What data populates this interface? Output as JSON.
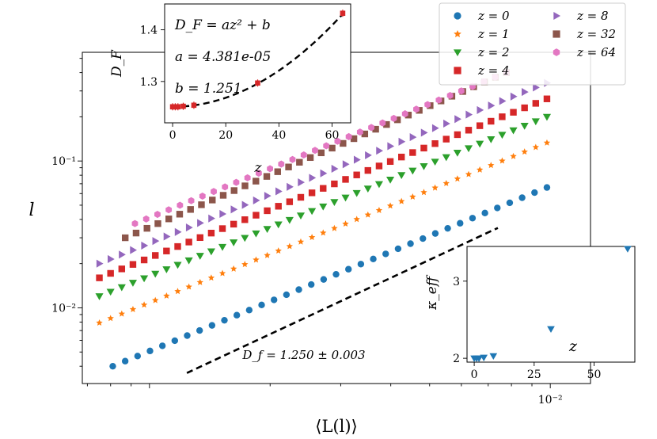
{
  "chart_data": [
    {
      "type": "scatter",
      "title": "",
      "xlabel": "⟨L(l)⟩",
      "ylabel": "l",
      "x_scale": "log",
      "y_scale": "log",
      "xlim": [
        0.00068,
        0.0126
      ],
      "ylim": [
        0.00305,
        0.55
      ],
      "x_tick_labels": [
        {
          "value": 0.01,
          "label": "10⁻²"
        }
      ],
      "y_tick_labels": [
        {
          "value": 0.01,
          "label": "10⁻²"
        },
        {
          "value": 0.1,
          "label": "10⁻¹"
        }
      ],
      "grid": false,
      "legend": {
        "placement": "top-right",
        "columns": 2,
        "entries": [
          {
            "label": "z = 0",
            "marker": "circle",
            "color": "#1f77b4"
          },
          {
            "label": "z = 1",
            "marker": "star",
            "color": "#ff7f0e"
          },
          {
            "label": "z = 2",
            "marker": "triangle-down",
            "color": "#2ca02c"
          },
          {
            "label": "z = 4",
            "marker": "square",
            "color": "#d62728"
          },
          {
            "label": "z = 8",
            "marker": "triangle-right",
            "color": "#9467bd"
          },
          {
            "label": "z = 32",
            "marker": "square",
            "color": "#8c564b"
          },
          {
            "label": "z = 64",
            "marker": "hexagon",
            "color": "#e377c2"
          }
        ]
      },
      "series": [
        {
          "name": "z = 0",
          "color": "#1f77b4",
          "marker": "circle",
          "x_start": 0.00081,
          "x_end": 0.00981,
          "n_points": 36,
          "y_start": 0.004,
          "y_end": 0.066
        },
        {
          "name": "z = 1",
          "color": "#ff7f0e",
          "marker": "star",
          "x_start": 0.00075,
          "x_end": 0.00981,
          "n_points": 41,
          "y_start": 0.0079,
          "y_end": 0.133
        },
        {
          "name": "z = 2",
          "color": "#2ca02c",
          "marker": "triangle-down",
          "x_start": 0.00075,
          "x_end": 0.00981,
          "n_points": 41,
          "y_start": 0.012,
          "y_end": 0.2
        },
        {
          "name": "z = 4",
          "color": "#d62728",
          "marker": "square",
          "x_start": 0.00075,
          "x_end": 0.00981,
          "n_points": 41,
          "y_start": 0.016,
          "y_end": 0.265
        },
        {
          "name": "z = 8",
          "color": "#9467bd",
          "marker": "triangle-right",
          "x_start": 0.00075,
          "x_end": 0.00981,
          "n_points": 41,
          "y_start": 0.02,
          "y_end": 0.34
        },
        {
          "name": "z = 32",
          "color": "#8c564b",
          "marker": "square",
          "x_start": 0.00087,
          "x_end": 0.00777,
          "n_points": 36,
          "y_start": 0.03,
          "y_end": 0.4
        },
        {
          "name": "z = 64",
          "color": "#e377c2",
          "marker": "hexagon",
          "x_start": 0.00092,
          "x_end": 0.00777,
          "n_points": 34,
          "y_start": 0.0375,
          "y_end": 0.4
        }
      ],
      "reference_line": {
        "style": "dashed",
        "color": "#000000",
        "x": [
          0.00124,
          0.0074
        ],
        "y": [
          0.0036,
          0.035
        ]
      },
      "annotation": "D_f = 1.250 ± 0.003"
    },
    {
      "type": "scatter",
      "title": "",
      "xlabel": "z",
      "ylabel": "D_F",
      "xlim": [
        -3,
        67
      ],
      "ylim": [
        1.22,
        1.45
      ],
      "x_ticks": [
        0,
        20,
        40,
        60
      ],
      "y_ticks": [
        1.3,
        1.4
      ],
      "points": [
        {
          "x": 0,
          "y": 1.251
        },
        {
          "x": 1,
          "y": 1.251
        },
        {
          "x": 2,
          "y": 1.251
        },
        {
          "x": 4,
          "y": 1.252
        },
        {
          "x": 8,
          "y": 1.254
        },
        {
          "x": 32,
          "y": 1.297
        },
        {
          "x": 64,
          "y": 1.432
        }
      ],
      "point_color": "#d62728",
      "fit_line": {
        "style": "dashed",
        "color": "#000000",
        "a": 4.381e-05,
        "b": 1.251
      },
      "annotations": [
        "D_F = az² + b",
        "a = 4.381e-05",
        "b = 1.251"
      ]
    },
    {
      "type": "scatter",
      "title": "",
      "xlabel": "z",
      "ylabel": "κ_eff",
      "xlim": [
        -3,
        67
      ],
      "ylim": [
        1.95,
        3.45
      ],
      "x_ticks": [
        0,
        25,
        50
      ],
      "y_ticks": [
        2,
        3
      ],
      "marker": "triangle-down",
      "color": "#1f77b4",
      "points": [
        {
          "x": 0,
          "y": 2.0
        },
        {
          "x": 1,
          "y": 2.0
        },
        {
          "x": 2,
          "y": 2.0
        },
        {
          "x": 4,
          "y": 2.01
        },
        {
          "x": 8,
          "y": 2.03
        },
        {
          "x": 32,
          "y": 2.38
        },
        {
          "x": 64,
          "y": 3.42
        }
      ]
    }
  ]
}
